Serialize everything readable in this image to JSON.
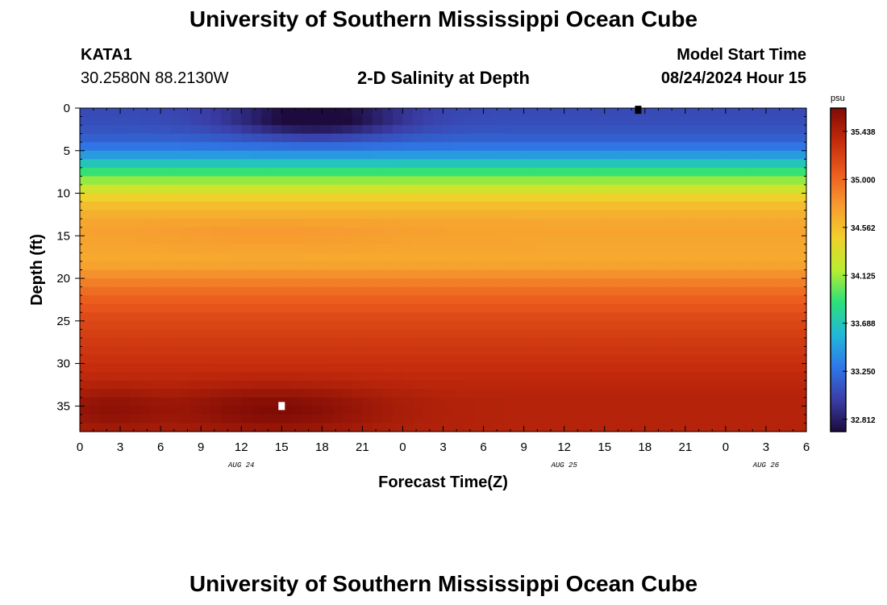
{
  "header": {
    "title": "University of Southern Mississippi Ocean Cube",
    "station": "KATA1",
    "coords": "30.2580N  88.2130W",
    "subtitle": "2-D Salinity at Depth",
    "model_start_label": "Model Start Time",
    "model_start_value": "08/24/2024 Hour 15"
  },
  "footer": {
    "title": "University of Southern Mississippi Ocean Cube"
  },
  "chart_data": {
    "type": "heatmap",
    "xlabel": "Forecast Time(Z)",
    "ylabel": "Depth (ft)",
    "x_tick_labels": [
      "0",
      "3",
      "6",
      "9",
      "12",
      "15",
      "18",
      "21",
      "0",
      "3",
      "6",
      "9",
      "12",
      "15",
      "18",
      "21",
      "0",
      "3",
      "6"
    ],
    "x_hours": [
      0,
      54
    ],
    "day_labels": [
      {
        "label": "AUG 24",
        "hour": 12
      },
      {
        "label": "AUG 25",
        "hour": 36
      },
      {
        "label": "AUG 26",
        "hour": 51
      }
    ],
    "y_ticks": [
      0,
      5,
      10,
      15,
      20,
      25,
      30,
      35
    ],
    "ylim": [
      0,
      38
    ],
    "y_inverted": true,
    "colorbar": {
      "unit": "psu",
      "ticks": [
        "35.438",
        "35.000",
        "34.562",
        "34.125",
        "33.688",
        "33.250",
        "32.812"
      ],
      "min": 32.7,
      "max": 35.65,
      "colors": [
        "#1e0b3d",
        "#3a3ea8",
        "#2f78e8",
        "#22b8d8",
        "#2ce07a",
        "#b8ee30",
        "#f2cf2b",
        "#f79a30",
        "#ec5b1d",
        "#c32a0c",
        "#7f0b05"
      ]
    },
    "depth_profile": [
      {
        "depth": 0,
        "salinity": 33.05
      },
      {
        "depth": 2,
        "salinity": 33.08
      },
      {
        "depth": 4,
        "salinity": 33.2
      },
      {
        "depth": 5,
        "salinity": 33.35
      },
      {
        "depth": 6,
        "salinity": 33.55
      },
      {
        "depth": 7,
        "salinity": 33.8
      },
      {
        "depth": 8,
        "salinity": 34.0
      },
      {
        "depth": 9,
        "salinity": 34.2
      },
      {
        "depth": 10,
        "salinity": 34.38
      },
      {
        "depth": 11,
        "salinity": 34.52
      },
      {
        "depth": 12,
        "salinity": 34.62
      },
      {
        "depth": 14,
        "salinity": 34.72
      },
      {
        "depth": 16,
        "salinity": 34.7
      },
      {
        "depth": 18,
        "salinity": 34.68
      },
      {
        "depth": 20,
        "salinity": 34.85
      },
      {
        "depth": 22,
        "salinity": 35.02
      },
      {
        "depth": 25,
        "salinity": 35.18
      },
      {
        "depth": 28,
        "salinity": 35.27
      },
      {
        "depth": 31,
        "salinity": 35.35
      },
      {
        "depth": 34,
        "salinity": 35.42
      },
      {
        "depth": 38,
        "salinity": 35.42
      }
    ],
    "anomalies": [
      {
        "hour": 17.5,
        "depth": 1.2,
        "amp": -0.45,
        "hour_radius": 6,
        "depth_radius": 2.2
      },
      {
        "hour": 14.5,
        "depth": 35.5,
        "amp": 0.22,
        "hour_radius": 8,
        "depth_radius": 2.8
      },
      {
        "hour": 2,
        "depth": 35.5,
        "amp": 0.15,
        "hour_radius": 4,
        "depth_radius": 2.5
      },
      {
        "hour": 14,
        "depth": 14.8,
        "amp": 0.05,
        "hour_radius": 10,
        "depth_radius": 1.8
      }
    ],
    "markers": [
      {
        "name": "white-square-marker",
        "hour": 15,
        "depth": 35,
        "color": "#ffffff"
      },
      {
        "name": "black-marker",
        "hour": 41.5,
        "depth": 0.2,
        "color": "#000000"
      }
    ]
  }
}
